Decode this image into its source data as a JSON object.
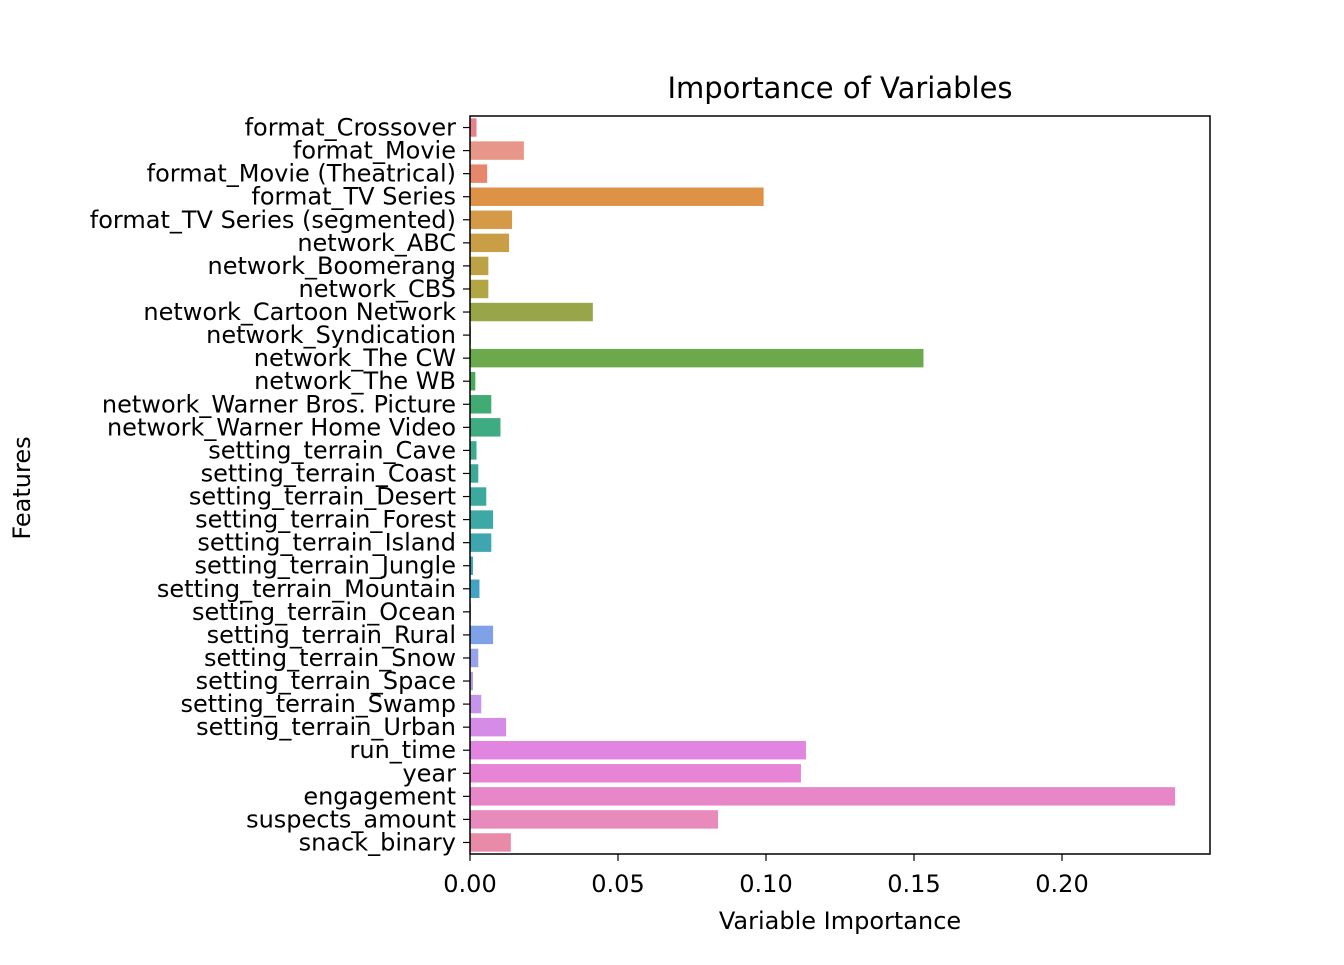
{
  "chart_data": {
    "type": "bar",
    "orientation": "horizontal",
    "title": "Importance of Variables",
    "xlabel": "Variable Importance",
    "ylabel": "Features",
    "xlim": [
      0.0,
      0.25
    ],
    "xticks": [
      0.0,
      0.05,
      0.1,
      0.15,
      0.2
    ],
    "xtick_labels": [
      "0.00",
      "0.05",
      "0.10",
      "0.15",
      "0.20"
    ],
    "grid": false,
    "categories": [
      "format_Crossover",
      "format_Movie",
      "format_Movie (Theatrical)",
      "format_TV Series",
      "format_TV Series (segmented)",
      "network_ABC",
      "network_Boomerang",
      "network_CBS",
      "network_Cartoon Network",
      "network_Syndication",
      "network_The CW",
      "network_The WB",
      "network_Warner Bros. Picture",
      "network_Warner Home Video",
      "setting_terrain_Cave",
      "setting_terrain_Coast",
      "setting_terrain_Desert",
      "setting_terrain_Forest",
      "setting_terrain_Island",
      "setting_terrain_Jungle",
      "setting_terrain_Mountain",
      "setting_terrain_Ocean",
      "setting_terrain_Rural",
      "setting_terrain_Snow",
      "setting_terrain_Space",
      "setting_terrain_Swamp",
      "setting_terrain_Urban",
      "run_time",
      "year",
      "engagement",
      "suspects_amount",
      "snack_binary"
    ],
    "values": [
      0.0022,
      0.0182,
      0.0058,
      0.0992,
      0.0142,
      0.0132,
      0.0062,
      0.0062,
      0.0415,
      0.0003,
      0.1532,
      0.0018,
      0.0072,
      0.0103,
      0.0022,
      0.0028,
      0.0055,
      0.0078,
      0.0072,
      0.001,
      0.0032,
      0.0003,
      0.0078,
      0.0028,
      0.001,
      0.0038,
      0.0122,
      0.1135,
      0.1118,
      0.2382,
      0.0838,
      0.0138
    ],
    "colors": [
      "#e8818c",
      "#e8968a",
      "#e6866a",
      "#dd9246",
      "#d49a48",
      "#c99e46",
      "#bca244",
      "#b1a544",
      "#98a548",
      "#87a84a",
      "#6ca84c",
      "#4aaa5a",
      "#40ab72",
      "#3eab82",
      "#3eaa8e",
      "#3caa96",
      "#3ca99e",
      "#3ea8a6",
      "#3ea6ae",
      "#3fa5b6",
      "#42a3c2",
      "#58a0d6",
      "#7fa2e6",
      "#98a2ea",
      "#b09cea",
      "#c694ea",
      "#d48ce6",
      "#e285e0",
      "#e784d6",
      "#e887c8",
      "#e88abc",
      "#e98aa8"
    ]
  }
}
